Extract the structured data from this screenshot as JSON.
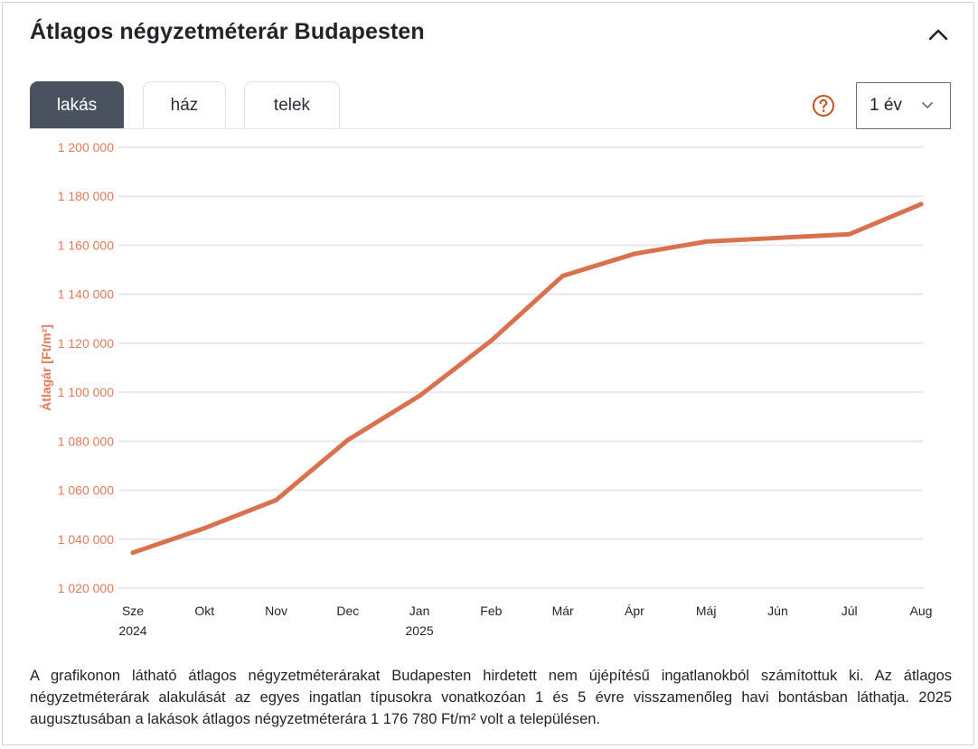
{
  "header": {
    "title": "Átlagos négyzetméterár Budapesten"
  },
  "tabs": [
    {
      "label": "lakás",
      "active": true
    },
    {
      "label": "ház",
      "active": false
    },
    {
      "label": "telek",
      "active": false
    }
  ],
  "period_select": {
    "value": "1 év"
  },
  "icons": {
    "collapse": "chevron-up-icon",
    "help": "question-circle-icon",
    "dropdown": "chevron-down-icon"
  },
  "colors": {
    "accent": "#d9714f",
    "axis_text": "#e07b58",
    "tab_active_bg": "#4a5260",
    "help_icon": "#c0521f"
  },
  "chart_data": {
    "type": "line",
    "ylabel": "Átlagár [Ft/m²]",
    "ylim": [
      1020000,
      1200000
    ],
    "yticks": [
      1020000,
      1040000,
      1060000,
      1080000,
      1100000,
      1120000,
      1140000,
      1160000,
      1180000,
      1200000
    ],
    "ytick_labels": [
      "1 020 000",
      "1 040 000",
      "1 060 000",
      "1 080 000",
      "1 100 000",
      "1 120 000",
      "1 140 000",
      "1 160 000",
      "1 180 000",
      "1 200 000"
    ],
    "categories": [
      {
        "label": "Sze",
        "sublabel": "2024"
      },
      {
        "label": "Okt"
      },
      {
        "label": "Nov"
      },
      {
        "label": "Dec"
      },
      {
        "label": "Jan",
        "sublabel": "2025"
      },
      {
        "label": "Feb"
      },
      {
        "label": "Már"
      },
      {
        "label": "Ápr"
      },
      {
        "label": "Máj"
      },
      {
        "label": "Jún"
      },
      {
        "label": "Júl"
      },
      {
        "label": "Aug"
      }
    ],
    "series": [
      {
        "values": [
          1034500,
          1044500,
          1056000,
          1080500,
          1098500,
          1121000,
          1147500,
          1156500,
          1161500,
          1163000,
          1164500,
          1176780
        ]
      }
    ],
    "grid": true
  },
  "description": "A grafikonon látható átlagos négyzetméterárakat Budapesten hirdetett nem újépítésű ingatlanokból számítottuk ki. Az átlagos négyzetméterárak alakulását az egyes ingatlan típusokra vonatkozóan 1 és 5 évre visszamenőleg havi bontásban láthatja. 2025 augusztusában a lakások átlagos négyzetméterára 1 176 780 Ft/m² volt a településen."
}
